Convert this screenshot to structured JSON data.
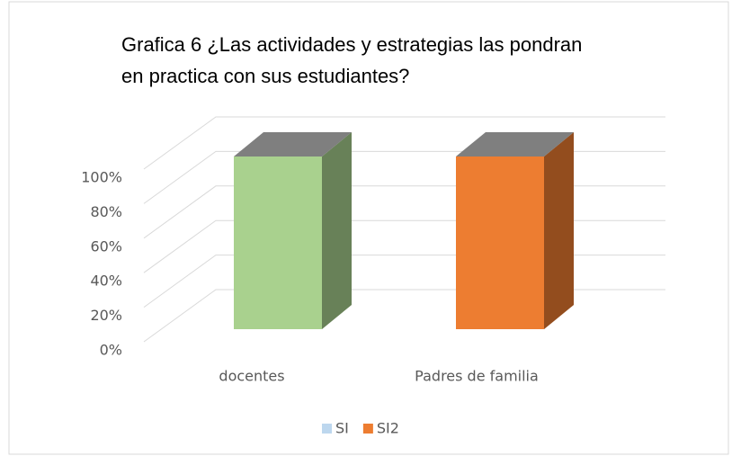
{
  "chart_data": {
    "type": "bar3d",
    "title_lines": [
      "Grafica 6  ¿Las actividades y estrategias las pondran",
      "en practica con sus  estudiantes?"
    ],
    "categories": [
      "docentes",
      "Padres de familia"
    ],
    "series": [
      {
        "name": "SI",
        "color": "#a9d18e",
        "legend_color": "#bdd7ee",
        "values": [
          100,
          null
        ]
      },
      {
        "name": "SI2",
        "color": "#ed7d31",
        "values": [
          null,
          100
        ]
      }
    ],
    "ylim": [
      0,
      100
    ],
    "yticks": [
      {
        "value": 0,
        "label": "0%"
      },
      {
        "value": 20,
        "label": "20%"
      },
      {
        "value": 40,
        "label": "40%"
      },
      {
        "value": 60,
        "label": "60%"
      },
      {
        "value": 80,
        "label": "80%"
      },
      {
        "value": 100,
        "label": "100%"
      }
    ],
    "grid": true,
    "legend": "bottom"
  }
}
